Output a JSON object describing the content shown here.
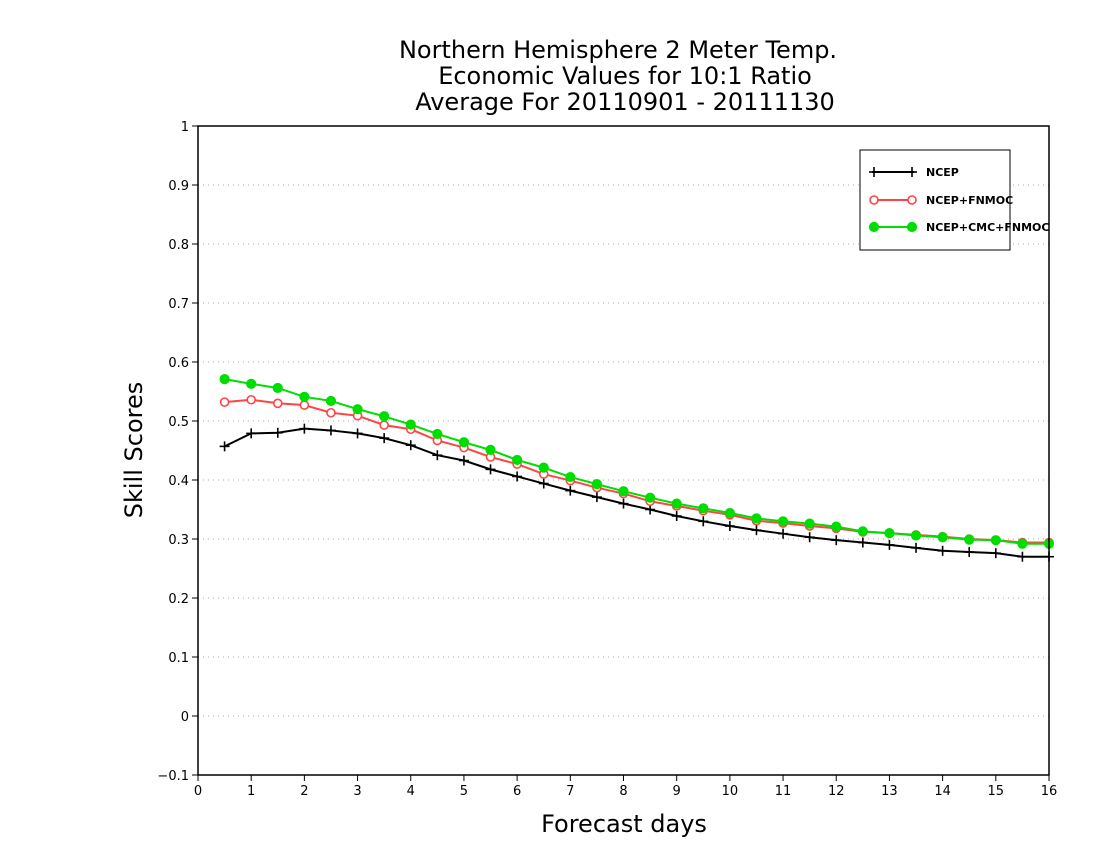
{
  "chart_data": {
    "type": "line",
    "title_lines": [
      "Northern Hemisphere 2 Meter Temp.",
      "Economic Values for 10:1 Ratio",
      "Average For 20110901 - 20111130"
    ],
    "xlabel": "Forecast days",
    "ylabel": "Skill Scores",
    "xlim": [
      0,
      16
    ],
    "ylim": [
      -0.1,
      1
    ],
    "x_ticks": [
      "0",
      "1",
      "2",
      "3",
      "4",
      "5",
      "6",
      "7",
      "8",
      "9",
      "10",
      "11",
      "12",
      "13",
      "14",
      "15",
      "16"
    ],
    "y_ticks": [
      "−0.1",
      "0",
      "0.1",
      "0.2",
      "0.3",
      "0.4",
      "0.5",
      "0.6",
      "0.7",
      "0.8",
      "0.9",
      "1"
    ],
    "grid": "horizontal dotted",
    "legend_position": "top-right",
    "x": [
      0.5,
      1,
      1.5,
      2,
      2.5,
      3,
      3.5,
      4,
      4.5,
      5,
      5.5,
      6,
      6.5,
      7,
      7.5,
      8,
      8.5,
      9,
      9.5,
      10,
      10.5,
      11,
      11.5,
      12,
      12.5,
      13,
      13.5,
      14,
      14.5,
      15,
      15.5,
      16
    ],
    "series": [
      {
        "name": "NCEP",
        "color": "#000000",
        "marker": "plus",
        "values": [
          0.457,
          0.479,
          0.48,
          0.487,
          0.484,
          0.479,
          0.471,
          0.459,
          0.442,
          0.433,
          0.418,
          0.406,
          0.394,
          0.382,
          0.371,
          0.36,
          0.35,
          0.339,
          0.33,
          0.322,
          0.315,
          0.309,
          0.303,
          0.298,
          0.294,
          0.29,
          0.285,
          0.28,
          0.278,
          0.276,
          0.27,
          0.27
        ]
      },
      {
        "name": "NCEP+FNMOC",
        "color": "#ff4444",
        "marker": "open-circle",
        "values": [
          0.532,
          0.536,
          0.53,
          0.527,
          0.514,
          0.509,
          0.493,
          0.486,
          0.467,
          0.455,
          0.439,
          0.427,
          0.41,
          0.399,
          0.387,
          0.377,
          0.364,
          0.356,
          0.348,
          0.341,
          0.331,
          0.327,
          0.322,
          0.318,
          0.312,
          0.31,
          0.307,
          0.304,
          0.3,
          0.298,
          0.294,
          0.294
        ]
      },
      {
        "name": "NCEP+CMC+FNMOC",
        "color": "#00dd00",
        "marker": "filled-circle",
        "values": [
          0.571,
          0.563,
          0.556,
          0.541,
          0.534,
          0.52,
          0.508,
          0.494,
          0.478,
          0.464,
          0.451,
          0.434,
          0.421,
          0.405,
          0.393,
          0.381,
          0.37,
          0.36,
          0.352,
          0.344,
          0.335,
          0.33,
          0.326,
          0.321,
          0.313,
          0.31,
          0.306,
          0.303,
          0.299,
          0.298,
          0.292,
          0.292
        ]
      }
    ]
  }
}
